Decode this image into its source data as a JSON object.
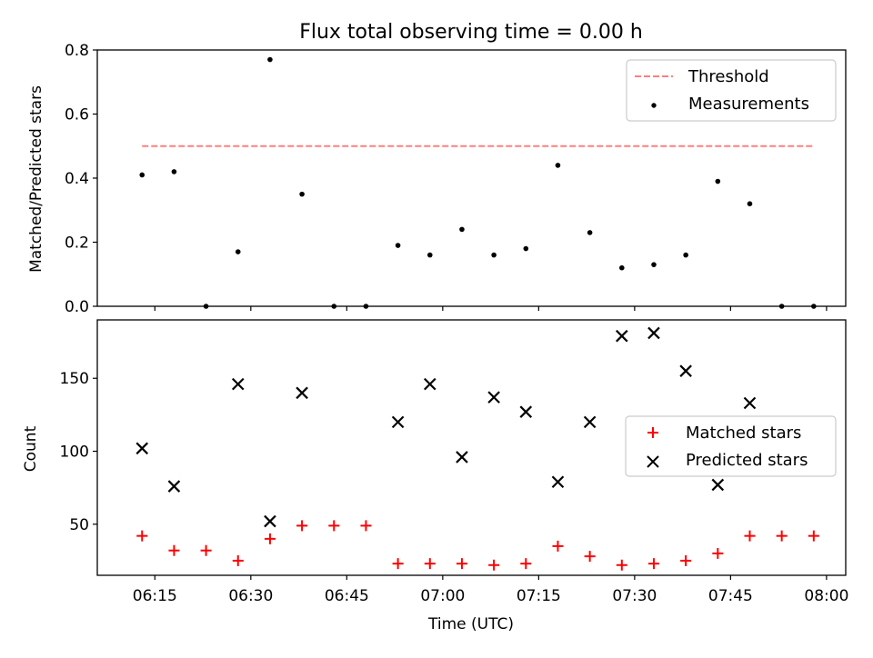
{
  "chart_data": [
    {
      "type": "scatter",
      "title": "Flux total observing time = 0.00 h",
      "ylabel": "Matched/Predicted stars",
      "ylim": [
        0,
        0.8
      ],
      "yticks": [
        "0.0",
        "0.2",
        "0.4",
        "0.6",
        "0.8"
      ],
      "xlim": [
        "06:06",
        "08:03"
      ],
      "grid": false,
      "legend_position": "upper right",
      "threshold": {
        "name": "Threshold",
        "value": 0.5,
        "x_start": "06:13",
        "x_end": "07:58",
        "style": "dashed",
        "color": "#ff7f7f"
      },
      "series": [
        {
          "name": "Measurements",
          "color": "#000000",
          "x": [
            "06:13",
            "06:18",
            "06:23",
            "06:28",
            "06:33",
            "06:38",
            "06:43",
            "06:48",
            "06:53",
            "06:58",
            "07:03",
            "07:08",
            "07:13",
            "07:18",
            "07:23",
            "07:28",
            "07:33",
            "07:38",
            "07:43",
            "07:48",
            "07:53",
            "07:58"
          ],
          "y": [
            0.41,
            0.42,
            0.0,
            0.17,
            0.77,
            0.35,
            0.0,
            0.0,
            0.19,
            0.16,
            0.24,
            0.16,
            0.18,
            0.44,
            0.23,
            0.12,
            0.13,
            0.16,
            0.39,
            0.32,
            0.0,
            0.0
          ]
        }
      ]
    },
    {
      "type": "scatter",
      "xlabel": "Time (UTC)",
      "ylabel": "Count",
      "ylim": [
        15,
        190
      ],
      "yticks": [
        "50",
        "100",
        "150"
      ],
      "xlim": [
        "06:06",
        "08:03"
      ],
      "xticks": [
        "06:15",
        "06:30",
        "06:45",
        "07:00",
        "07:15",
        "07:30",
        "07:45",
        "08:00"
      ],
      "grid": false,
      "legend_position": "center right",
      "series": [
        {
          "name": "Matched stars",
          "marker": "plus",
          "color": "#ff0000",
          "x": [
            "06:13",
            "06:18",
            "06:23",
            "06:28",
            "06:33",
            "06:38",
            "06:43",
            "06:48",
            "06:53",
            "06:58",
            "07:03",
            "07:08",
            "07:13",
            "07:18",
            "07:23",
            "07:28",
            "07:33",
            "07:38",
            "07:43",
            "07:48",
            "07:53",
            "07:58"
          ],
          "y": [
            42,
            32,
            32,
            25,
            40,
            49,
            49,
            49,
            23,
            23,
            23,
            22,
            23,
            35,
            28,
            22,
            23,
            25,
            30,
            42,
            42,
            42
          ]
        },
        {
          "name": "Predicted stars",
          "marker": "x",
          "color": "#000000",
          "x": [
            "06:13",
            "06:18",
            "06:28",
            "06:33",
            "06:38",
            "06:53",
            "06:58",
            "07:03",
            "07:08",
            "07:13",
            "07:18",
            "07:23",
            "07:28",
            "07:33",
            "07:38",
            "07:43",
            "07:48"
          ],
          "y": [
            102,
            76,
            146,
            52,
            140,
            120,
            146,
            96,
            137,
            127,
            79,
            120,
            179,
            181,
            155,
            77,
            133
          ]
        }
      ]
    }
  ]
}
